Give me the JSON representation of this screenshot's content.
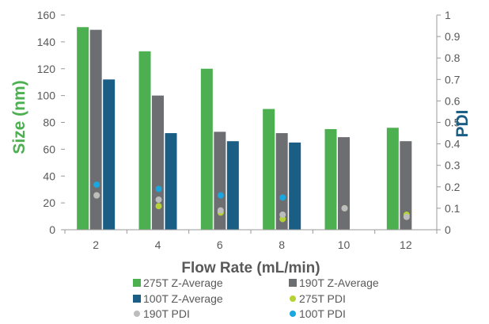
{
  "chart_data": {
    "type": "bar",
    "xlabel": "Flow Rate (mL/min)",
    "ylabel_left": "Size (nm)",
    "ylabel_right": "PDI",
    "ylim_left": [
      0,
      160
    ],
    "ylim_right": [
      0,
      1
    ],
    "yticks_left": [
      "0",
      "20",
      "40",
      "60",
      "80",
      "100",
      "120",
      "140",
      "160"
    ],
    "yticks_right": [
      "0",
      "0.1",
      "0.2",
      "0.3",
      "0.4",
      "0.5",
      "0.6",
      "0.7",
      "0.8",
      "0.9",
      "1"
    ],
    "categories": [
      "2",
      "4",
      "6",
      "8",
      "10",
      "12"
    ],
    "bar_series": [
      {
        "name": "275T Z-Average",
        "color": "#4caf50",
        "values": [
          151,
          133,
          120,
          90,
          75,
          76
        ]
      },
      {
        "name": "190T Z-Average",
        "color": "#6d6e71",
        "values": [
          149,
          100,
          73,
          72,
          69,
          66
        ]
      },
      {
        "name": "100T Z-Average",
        "color": "#1b5e85",
        "values": [
          112,
          72,
          66,
          65,
          null,
          null
        ]
      }
    ],
    "point_series": [
      {
        "name": "275T PDI",
        "color": "#b5d334",
        "values": [
          0.16,
          0.11,
          0.08,
          0.05,
          0.1,
          0.07
        ]
      },
      {
        "name": "190T PDI",
        "color": "#bdbdbd",
        "values": [
          0.16,
          0.14,
          0.09,
          0.07,
          0.1,
          0.06
        ]
      },
      {
        "name": "100T PDI",
        "color": "#1aa7e0",
        "values": [
          0.21,
          0.19,
          0.16,
          0.15,
          null,
          null
        ]
      }
    ],
    "colors": {
      "left_axis_label": "#4caf50",
      "right_axis_label": "#1b5e85"
    },
    "legend_position": "bottom",
    "grid": false
  }
}
